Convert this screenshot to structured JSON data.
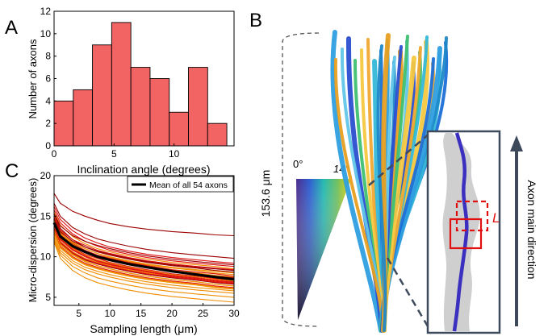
{
  "panels": {
    "a": "A",
    "b": "B",
    "c": "C"
  },
  "chart_data": [
    {
      "panel": "A",
      "type": "bar",
      "xlabel": "Inclination angle (degrees)",
      "ylabel": "Number of axons",
      "xlim": [
        0,
        15
      ],
      "ylim": [
        0,
        12
      ],
      "xticks": [
        0,
        5,
        10
      ],
      "yticks": [
        0,
        2,
        4,
        6,
        8,
        10,
        12
      ],
      "bin_edges": [
        0,
        1.6,
        3.2,
        4.8,
        6.4,
        8.0,
        9.6,
        11.2,
        12.8,
        14.4
      ],
      "values": [
        4,
        5,
        9,
        11,
        7,
        6,
        3,
        7,
        2
      ],
      "color": "#f26464"
    },
    {
      "panel": "C",
      "type": "line",
      "xlabel": "Sampling length (μm)",
      "ylabel": "Micro-dispersion (degrees)",
      "xlim": [
        1,
        30
      ],
      "ylim": [
        4,
        20
      ],
      "xticks": [
        5,
        10,
        15,
        20,
        25,
        30
      ],
      "yticks": [
        5,
        10,
        15,
        20
      ],
      "legend": "Mean of all 54 axons",
      "legend_position": "top-right",
      "colors": {
        "mean": "#000000",
        "dark_red": "#9b0000",
        "red": "#e01010",
        "orange": "#f08c00"
      },
      "x": [
        1,
        2,
        4,
        6,
        8,
        10,
        13,
        16,
        20,
        24,
        27,
        30
      ],
      "series": [
        {
          "name": "Mean of all 54 axons",
          "values": [
            14.2,
            12.5,
            11.3,
            10.6,
            10.0,
            9.6,
            9.1,
            8.7,
            8.2,
            7.8,
            7.5,
            7.2
          ]
        },
        {
          "values": [
            17.8,
            16.6,
            15.6,
            15.0,
            14.5,
            14.1,
            13.7,
            13.4,
            13.1,
            12.9,
            12.7,
            12.6
          ]
        },
        {
          "values": [
            16.6,
            15.0,
            13.6,
            12.8,
            12.2,
            11.8,
            11.3,
            10.9,
            10.5,
            10.2,
            10.0,
            9.8
          ]
        },
        {
          "values": [
            16.2,
            14.6,
            13.2,
            12.3,
            11.7,
            11.2,
            10.7,
            10.3,
            9.9,
            9.6,
            9.4,
            9.2
          ]
        },
        {
          "values": [
            15.8,
            14.2,
            12.8,
            11.9,
            11.3,
            10.8,
            10.3,
            9.9,
            9.5,
            9.2,
            9.0,
            8.8
          ]
        },
        {
          "values": [
            15.5,
            13.9,
            12.5,
            11.6,
            11.0,
            10.6,
            10.1,
            9.7,
            9.3,
            9.0,
            8.8,
            8.5
          ]
        },
        {
          "values": [
            15.2,
            13.5,
            12.1,
            11.2,
            10.6,
            10.2,
            9.7,
            9.3,
            8.9,
            8.6,
            8.3,
            8.1
          ]
        },
        {
          "values": [
            15.0,
            13.2,
            11.8,
            11.0,
            10.4,
            9.9,
            9.4,
            9.0,
            8.6,
            8.3,
            8.0,
            7.8
          ]
        },
        {
          "values": [
            14.8,
            13.0,
            11.6,
            10.8,
            10.2,
            9.8,
            9.3,
            8.9,
            8.4,
            8.1,
            7.9,
            7.6
          ]
        },
        {
          "values": [
            14.6,
            12.8,
            11.5,
            10.7,
            10.1,
            9.7,
            9.2,
            8.8,
            8.3,
            8.0,
            7.7,
            7.5
          ]
        },
        {
          "values": [
            14.4,
            12.7,
            11.4,
            10.6,
            10.0,
            9.6,
            9.1,
            8.7,
            8.2,
            7.9,
            7.6,
            7.4
          ]
        },
        {
          "values": [
            14.3,
            12.6,
            11.3,
            10.5,
            9.9,
            9.5,
            9.0,
            8.6,
            8.1,
            7.8,
            7.5,
            7.3
          ]
        },
        {
          "values": [
            14.1,
            12.4,
            11.1,
            10.3,
            9.8,
            9.3,
            8.8,
            8.4,
            7.9,
            7.6,
            7.3,
            7.1
          ]
        },
        {
          "values": [
            14.0,
            12.3,
            11.0,
            10.2,
            9.6,
            9.2,
            8.7,
            8.3,
            7.8,
            7.5,
            7.2,
            7.0
          ]
        },
        {
          "values": [
            13.8,
            12.1,
            10.8,
            10.0,
            9.4,
            9.0,
            8.5,
            8.1,
            7.6,
            7.3,
            7.0,
            6.8
          ]
        },
        {
          "values": [
            13.6,
            11.9,
            10.6,
            9.8,
            9.3,
            8.9,
            8.4,
            8.0,
            7.5,
            7.2,
            6.9,
            6.7
          ]
        },
        {
          "values": [
            13.4,
            11.7,
            10.4,
            9.6,
            9.1,
            8.7,
            8.2,
            7.8,
            7.4,
            7.1,
            6.8,
            6.6
          ]
        },
        {
          "values": [
            13.2,
            11.5,
            10.2,
            9.4,
            8.9,
            8.5,
            8.0,
            7.6,
            7.2,
            6.9,
            6.6,
            6.4
          ]
        },
        {
          "values": [
            13.0,
            11.3,
            10.0,
            9.2,
            8.7,
            8.3,
            7.8,
            7.4,
            7.0,
            6.7,
            6.4,
            6.2
          ]
        },
        {
          "values": [
            12.8,
            11.1,
            9.8,
            9.0,
            8.5,
            8.1,
            7.6,
            7.2,
            6.8,
            6.5,
            6.2,
            6.0
          ]
        },
        {
          "values": [
            12.5,
            10.8,
            9.5,
            8.7,
            8.2,
            7.8,
            7.3,
            6.9,
            6.5,
            6.2,
            6.0,
            5.8
          ]
        },
        {
          "values": [
            12.2,
            10.5,
            9.2,
            8.4,
            7.9,
            7.5,
            7.0,
            6.6,
            6.2,
            5.9,
            5.7,
            5.5
          ]
        },
        {
          "values": [
            15.3,
            13.8,
            12.6,
            11.9,
            11.4,
            11.0,
            10.5,
            10.1,
            9.7,
            9.4,
            9.2,
            9.0
          ]
        },
        {
          "values": [
            14.9,
            13.3,
            12.1,
            11.4,
            10.8,
            10.4,
            9.9,
            9.5,
            9.1,
            8.8,
            8.6,
            8.4
          ]
        },
        {
          "values": [
            14.5,
            12.9,
            11.7,
            11.0,
            10.4,
            10.0,
            9.5,
            9.1,
            8.7,
            8.4,
            8.2,
            8.0
          ]
        },
        {
          "values": [
            13.9,
            12.2,
            10.9,
            10.1,
            9.5,
            9.1,
            8.6,
            8.2,
            7.7,
            7.4,
            7.1,
            6.9
          ]
        },
        {
          "values": [
            13.3,
            11.6,
            10.3,
            9.5,
            8.9,
            8.5,
            8.0,
            7.6,
            7.2,
            6.9,
            6.6,
            6.4
          ]
        },
        {
          "values": [
            12.9,
            11.2,
            9.9,
            9.1,
            8.6,
            8.2,
            7.7,
            7.3,
            6.9,
            6.6,
            6.3,
            6.1
          ]
        },
        {
          "values": [
            12.0,
            10.2,
            8.8,
            8.0,
            7.4,
            7.0,
            6.5,
            6.1,
            5.7,
            5.4,
            5.2,
            5.0
          ]
        },
        {
          "values": [
            11.8,
            9.8,
            8.3,
            7.4,
            6.8,
            6.4,
            5.9,
            5.5,
            5.1,
            4.8,
            4.6,
            4.4
          ]
        },
        {
          "values": [
            14.7,
            13.1,
            11.9,
            11.2,
            10.7,
            10.3,
            9.8,
            9.4,
            9.0,
            8.7,
            8.5,
            8.3
          ]
        },
        {
          "values": [
            13.5,
            11.8,
            10.5,
            9.7,
            9.2,
            8.8,
            8.3,
            7.9,
            7.5,
            7.2,
            6.9,
            6.7
          ]
        }
      ],
      "series_colors": [
        "mean",
        "dark_red",
        "dark_red",
        "red",
        "red",
        "orange",
        "dark_red",
        "orange",
        "red",
        "orange",
        "dark_red",
        "orange",
        "red",
        "orange",
        "red",
        "orange",
        "dark_red",
        "orange",
        "red",
        "orange",
        "orange",
        "orange",
        "dark_red",
        "red",
        "orange",
        "red",
        "orange",
        "orange",
        "orange",
        "orange",
        "dark_red",
        "red"
      ]
    }
  ],
  "panel_b": {
    "scale_bar_label": "153.6 μm",
    "angle_min_label": "0°",
    "angle_max_label": "14°",
    "zoom_marker_label": "L",
    "direction_label": "Axon main direction"
  }
}
